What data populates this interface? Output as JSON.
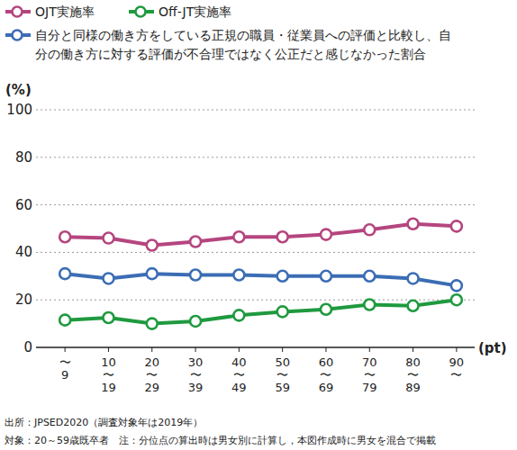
{
  "chart_data": {
    "type": "line",
    "categories": [
      "〜9",
      "10〜19",
      "20〜29",
      "30〜39",
      "40〜49",
      "50〜59",
      "60〜69",
      "70〜79",
      "80〜89",
      "90〜"
    ],
    "series": [
      {
        "name": "OJT実施率",
        "color": "#b5457f",
        "marker": "circle",
        "values": [
          46.5,
          46,
          43,
          44.5,
          46.5,
          46.5,
          47.5,
          49.5,
          52,
          51
        ]
      },
      {
        "name": "Off-JT実施率",
        "color": "#1f9a3f",
        "marker": "circle",
        "values": [
          11.5,
          12.5,
          10,
          11,
          13.5,
          15,
          16,
          18,
          17.5,
          20
        ]
      },
      {
        "name": "自分と同様の働き方をしている正規の職員・従業員への評価と比較し、自分の働き方に対する評価が不合理ではなく公正だと感じなかった割合",
        "color": "#3b6db4",
        "marker": "circle",
        "values": [
          31,
          29,
          31,
          30.5,
          30.5,
          30,
          30,
          30,
          29,
          26
        ]
      }
    ],
    "ylim": [
      0,
      100
    ],
    "yticks": [
      0,
      20,
      40,
      60,
      80,
      100
    ],
    "grid": true,
    "legend": "top",
    "y_label": "(%)",
    "x_label": "(pt)",
    "notes": [
      "出所：JPSED2020（調査対象年は2019年）",
      "対象：20～59歳既卒者　注：分位点の算出時は男女別に計算し，本図作成時に男女を混合で掲載"
    ]
  }
}
